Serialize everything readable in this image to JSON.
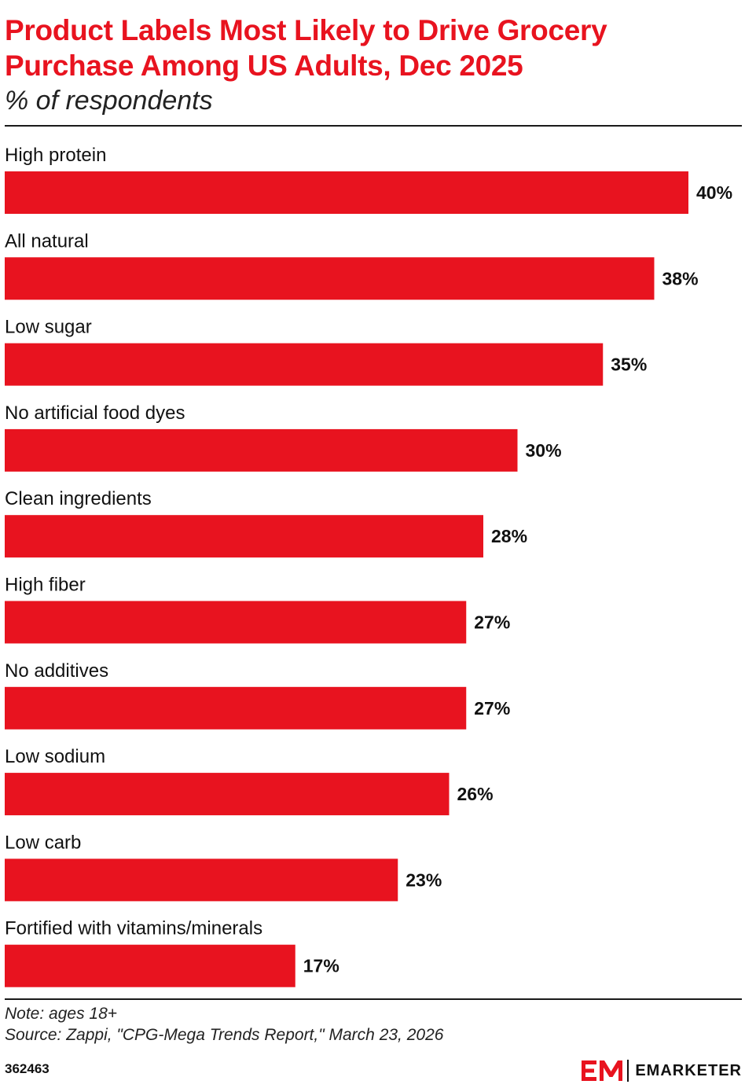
{
  "header": {
    "title": "Product Labels Most Likely to Drive Grocery Purchase Among US Adults, Dec 2025",
    "subtitle": "% of respondents"
  },
  "chart_data": {
    "type": "bar",
    "orientation": "horizontal",
    "title": "Product Labels Most Likely to Drive Grocery Purchase Among US Adults, Dec 2025",
    "subtitle": "% of respondents",
    "categories": [
      "High protein",
      "All natural",
      "Low sugar",
      "No artificial food dyes",
      "Clean ingredients",
      "High fiber",
      "No additives",
      "Low sodium",
      "Low carb",
      "Fortified with vitamins/minerals"
    ],
    "values": [
      40,
      38,
      35,
      30,
      28,
      27,
      27,
      26,
      23,
      17
    ],
    "data_labels": [
      "40%",
      "38%",
      "35%",
      "30%",
      "28%",
      "27%",
      "27%",
      "26%",
      "23%",
      "17%"
    ],
    "unit": "%",
    "xlim": [
      0,
      40
    ],
    "grid": false,
    "legend": "none",
    "bar_color": "#e8131f"
  },
  "footer": {
    "note": "Note: ages 18+",
    "source": "Source: Zappi, \"CPG-Mega Trends Report,\" March 23, 2026",
    "chart_id": "362463",
    "brand": "EMARKETER",
    "brand_icon": "emarketer-logo-icon",
    "brand_color": "#e8131f"
  }
}
